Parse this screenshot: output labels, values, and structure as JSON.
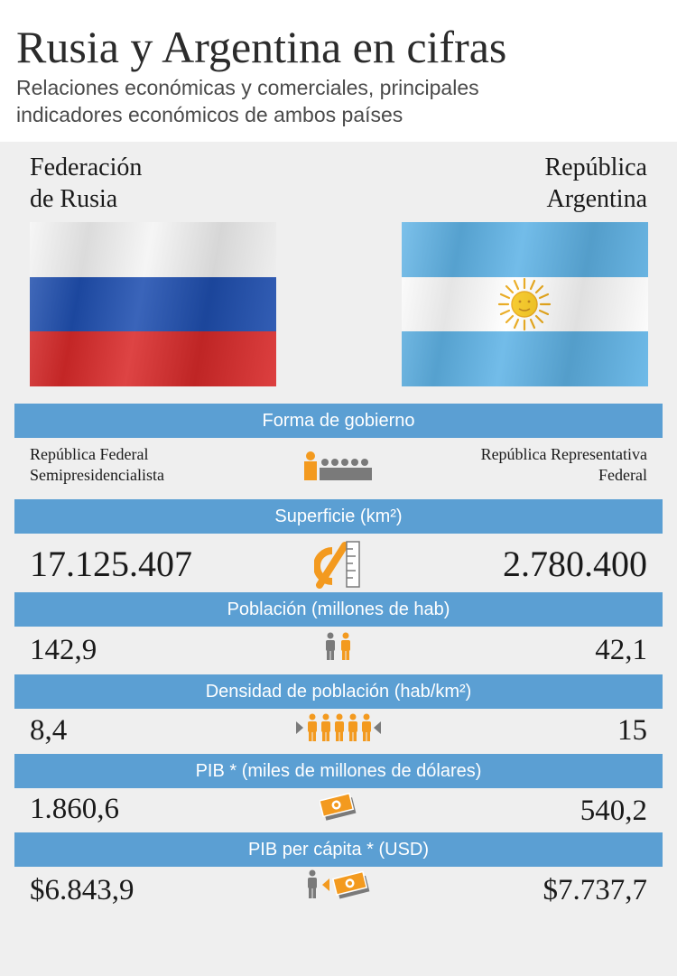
{
  "header": {
    "title": "Rusia y Argentina en cifras",
    "subtitle_line1": "Relaciones económicas y comerciales, principales",
    "subtitle_line2": "indicadores económicos de ambos países"
  },
  "countries": {
    "left_line1": "Federación",
    "left_line2": "de Rusia",
    "right_line1": "República",
    "right_line2": "Argentina"
  },
  "sections": {
    "gobierno": {
      "label": "Forma de gobierno",
      "left_line1": "República Federal",
      "left_line2": "Semipresidencialista",
      "right_line1": "República Representativa",
      "right_line2": "Federal",
      "icon": "parliament-icon"
    },
    "superficie": {
      "label": "Superficie (km²)",
      "left": "17.125.407",
      "right": "2.780.400",
      "icon": "area-ruler-icon"
    },
    "poblacion": {
      "label": "Población (millones de hab)",
      "left": "142,9",
      "right": "42,1",
      "icon": "people-icon"
    },
    "densidad": {
      "label": "Densidad de población (hab/km²)",
      "left": "8,4",
      "right": "15",
      "icon": "crowd-icon"
    },
    "pib": {
      "label": "PIB * (miles de millones de dólares)",
      "left": "1.860,6",
      "right": "540,2",
      "icon": "money-icon"
    },
    "pib_per_capita": {
      "label": "PIB per cápita * (USD)",
      "left": "$6.843,9",
      "right": "$7.737,7",
      "icon": "person-money-icon"
    }
  },
  "colors": {
    "bar": "#5b9fd3",
    "accent_orange": "#f39a1f",
    "icon_gray": "#7a7a7a",
    "ru_white": "#f4f4f4",
    "ru_blue": "#1f4fb0",
    "ru_red": "#d92a2a",
    "ar_blue": "#5fb3e6",
    "ar_white": "#ffffff",
    "ar_sun": "#f6c516"
  }
}
